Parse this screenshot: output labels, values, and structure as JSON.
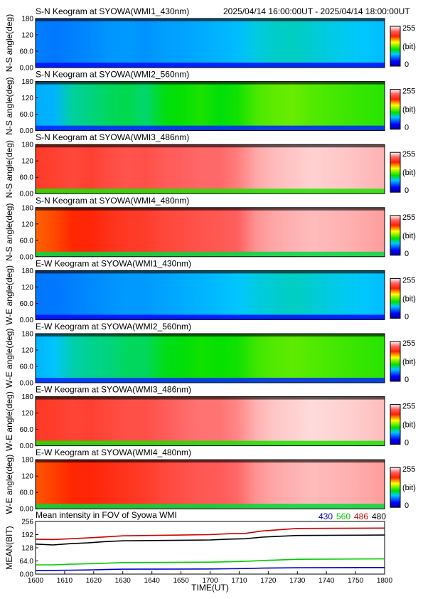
{
  "header": {
    "time_range": "2025/04/14 16:00:00UT - 2025/04/14 18:00:00UT"
  },
  "colors": {
    "ch430": "#0000cc",
    "ch560": "#00cc00",
    "ch486": "#cc0000",
    "ch480": "#000000"
  },
  "chart_data": [
    {
      "type": "heatmap",
      "title": "S-N Keogram at SYOWA(WMI1_430nm)",
      "ylabel": "N-S angle(deg)",
      "yticks": [
        "0.00",
        "60.0",
        "120",
        "180"
      ],
      "ylim": [
        0,
        180
      ],
      "xlim": [
        1600,
        1800
      ],
      "colorbar": {
        "max_label": "255",
        "unit_label": "(bit)",
        "min_label": "0",
        "range": [
          0,
          255
        ]
      },
      "intensity_profile": [
        60,
        58,
        60,
        62,
        65,
        66,
        64,
        67,
        68,
        70,
        72,
        74,
        80,
        83,
        84,
        82,
        80,
        78,
        76,
        74
      ]
    },
    {
      "type": "heatmap",
      "title": "S-N Keogram at SYOWA(WMI2_560nm)",
      "ylabel": "N-S angle(deg)",
      "yticks": [
        "0.00",
        "60.0",
        "120",
        "180"
      ],
      "ylim": [
        0,
        180
      ],
      "xlim": [
        1600,
        1800
      ],
      "colorbar": {
        "max_label": "255",
        "unit_label": "(bit)",
        "min_label": "0",
        "range": [
          0,
          255
        ]
      },
      "intensity_profile": [
        70,
        72,
        88,
        92,
        96,
        98,
        94,
        105,
        108,
        112,
        106,
        110,
        120,
        124,
        126,
        122,
        120,
        118,
        116,
        114
      ]
    },
    {
      "type": "heatmap",
      "title": "S-N Keogram at SYOWA(WMI3_486nm)",
      "ylabel": "N-S angle(deg)",
      "yticks": [
        "0.00",
        "60.0",
        "120",
        "180"
      ],
      "ylim": [
        0,
        180
      ],
      "xlim": [
        1600,
        1800
      ],
      "colorbar": {
        "max_label": "255",
        "unit_label": "(bit)",
        "min_label": "0",
        "range": [
          0,
          255
        ]
      },
      "intensity_profile": [
        205,
        208,
        212,
        208,
        214,
        218,
        216,
        222,
        224,
        226,
        226,
        230,
        238,
        242,
        244,
        246,
        245,
        244,
        242,
        240
      ]
    },
    {
      "type": "heatmap",
      "title": "S-N Keogram at SYOWA(WMI4_480nm)",
      "ylabel": "N-S angle(deg)",
      "yticks": [
        "0.00",
        "60.0",
        "120",
        "180"
      ],
      "ylim": [
        0,
        180
      ],
      "xlim": [
        1600,
        1800
      ],
      "colorbar": {
        "max_label": "255",
        "unit_label": "(bit)",
        "min_label": "0",
        "range": [
          0,
          255
        ]
      },
      "intensity_profile": [
        180,
        184,
        190,
        194,
        200,
        204,
        206,
        212,
        214,
        218,
        220,
        224,
        234,
        238,
        240,
        242,
        241,
        240,
        238,
        236
      ]
    },
    {
      "type": "heatmap",
      "title": "E-W Keogram at SYOWA(WMI1_430nm)",
      "ylabel": "W-E angle(deg)",
      "yticks": [
        "0.00",
        "60.0",
        "120",
        "180"
      ],
      "ylim": [
        0,
        180
      ],
      "xlim": [
        1600,
        1800
      ],
      "colorbar": {
        "max_label": "255",
        "unit_label": "(bit)",
        "min_label": "0",
        "range": [
          0,
          255
        ]
      },
      "intensity_profile": [
        58,
        58,
        60,
        62,
        64,
        66,
        66,
        68,
        70,
        72,
        74,
        76,
        80,
        82,
        84,
        82,
        80,
        78,
        76,
        74
      ]
    },
    {
      "type": "heatmap",
      "title": "E-W Keogram at SYOWA(WMI2_560nm)",
      "ylabel": "W-E angle(deg)",
      "yticks": [
        "0.00",
        "60.0",
        "120",
        "180"
      ],
      "ylim": [
        0,
        180
      ],
      "xlim": [
        1600,
        1800
      ],
      "colorbar": {
        "max_label": "255",
        "unit_label": "(bit)",
        "min_label": "0",
        "range": [
          0,
          255
        ]
      },
      "intensity_profile": [
        72,
        76,
        86,
        90,
        92,
        96,
        96,
        104,
        106,
        110,
        108,
        110,
        118,
        122,
        124,
        122,
        120,
        118,
        116,
        114
      ]
    },
    {
      "type": "heatmap",
      "title": "E-W Keogram at SYOWA(WMI3_486nm)",
      "ylabel": "W-E angle(deg)",
      "yticks": [
        "0.00",
        "60.0",
        "120",
        "180"
      ],
      "ylim": [
        0,
        180
      ],
      "xlim": [
        1600,
        1800
      ],
      "colorbar": {
        "max_label": "255",
        "unit_label": "(bit)",
        "min_label": "0",
        "range": [
          0,
          255
        ]
      },
      "intensity_profile": [
        204,
        206,
        210,
        208,
        212,
        216,
        216,
        222,
        226,
        228,
        228,
        232,
        240,
        244,
        246,
        248,
        247,
        246,
        244,
        242
      ]
    },
    {
      "type": "heatmap",
      "title": "E-W Keogram at SYOWA(WMI4_480nm)",
      "ylabel": "W-E angle(deg)",
      "yticks": [
        "0.00",
        "60.0",
        "120",
        "180"
      ],
      "ylim": [
        0,
        180
      ],
      "xlim": [
        1600,
        1800
      ],
      "colorbar": {
        "max_label": "255",
        "unit_label": "(bit)",
        "min_label": "0",
        "range": [
          0,
          255
        ]
      },
      "intensity_profile": [
        182,
        186,
        190,
        194,
        198,
        202,
        206,
        212,
        216,
        220,
        222,
        226,
        234,
        238,
        240,
        242,
        241,
        240,
        238,
        236
      ]
    },
    {
      "type": "line",
      "title": "Mean intensity in FOV of Syowa WMI",
      "xlabel": "TIME(UT)",
      "ylabel": "MEAN(BIT)",
      "xlim": [
        1600,
        1800
      ],
      "ylim": [
        0,
        256
      ],
      "xticks": [
        "1600",
        "1610",
        "1620",
        "1630",
        "1640",
        "1650",
        "1700",
        "1710",
        "1720",
        "1730",
        "1740",
        "1750",
        "1800"
      ],
      "yticks": [
        "0.00",
        "64.0",
        "128",
        "192",
        "256"
      ],
      "x": [
        1600,
        1610,
        1620,
        1630,
        1640,
        1650,
        1700,
        1710,
        1720,
        1730,
        1740,
        1750,
        1800
      ],
      "series": [
        {
          "name": "430",
          "color": "#0000cc",
          "values": [
            18,
            18,
            19,
            20,
            22,
            24,
            25,
            26,
            27,
            29,
            30,
            31,
            32
          ]
        },
        {
          "name": "560",
          "color": "#00cc00",
          "values": [
            45,
            45,
            48,
            50,
            53,
            56,
            58,
            60,
            62,
            66,
            69,
            72,
            74
          ]
        },
        {
          "name": "486",
          "color": "#cc0000",
          "values": [
            170,
            168,
            172,
            176,
            181,
            186,
            192,
            196,
            198,
            210,
            216,
            222,
            224
          ]
        },
        {
          "name": "480",
          "color": "#000000",
          "values": [
            146,
            142,
            148,
            152,
            158,
            162,
            166,
            170,
            172,
            180,
            184,
            188,
            190
          ]
        }
      ]
    }
  ]
}
